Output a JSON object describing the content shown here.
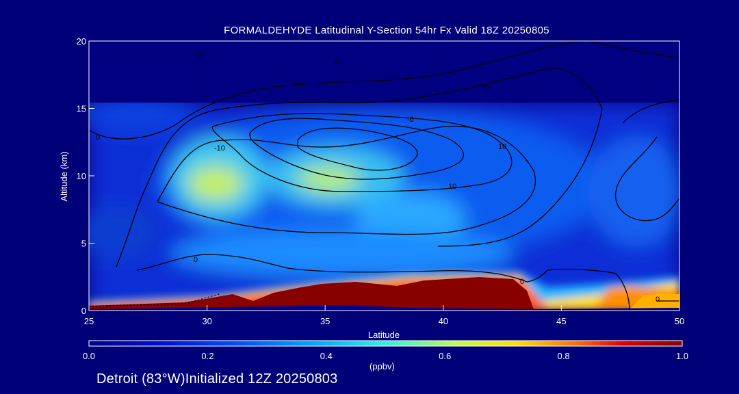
{
  "title": "FORMALDEHYDE Latitudinal Y-Section 54hr  Fx Valid 18Z 20250805",
  "footer": "Detroit (83°W)Initialized 12Z 20250803",
  "chart_data": {
    "type": "heatmap",
    "title": "FORMALDEHYDE Latitudinal Y-Section 54hr  Fx Valid 18Z 20250805",
    "xlabel": "Latitude",
    "ylabel": "Altitude (km)",
    "xlim": [
      25,
      50
    ],
    "ylim": [
      0,
      20
    ],
    "x_ticks": [
      "25",
      "30",
      "35",
      "40",
      "45",
      "50"
    ],
    "y_ticks": [
      "0",
      "5",
      "10",
      "15",
      "20"
    ],
    "colorbar": {
      "label": "(ppbv)",
      "range": [
        0.0,
        1.0
      ],
      "ticks": [
        "0.0",
        "0.2",
        "0.4",
        "0.6",
        "0.8",
        "1.0"
      ]
    },
    "contour_labels": [
      "0",
      "0",
      "-10",
      "10",
      "-10",
      "-6",
      "10",
      "10",
      "0",
      "0",
      "0"
    ]
  }
}
